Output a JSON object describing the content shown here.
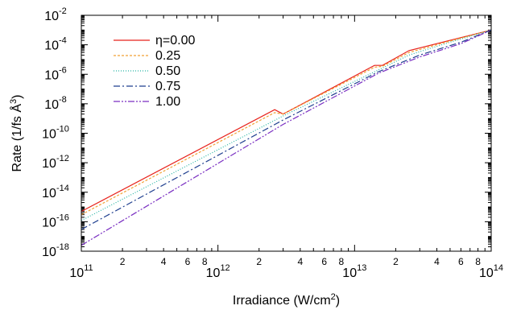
{
  "chart_data": {
    "type": "line",
    "xlabel": "Irradiance (W/cm",
    "xlabel_sup": "2",
    "xlabel_end": ")",
    "ylabel": "Rate (1/fs Å",
    "ylabel_sup": "3",
    "ylabel_end": ")",
    "xscale": "log",
    "yscale": "log",
    "xlim": [
      100000000000.0,
      100000000000000.0
    ],
    "ylim": [
      1e-18,
      0.01
    ],
    "x_major_ticks": [
      {
        "value": 100000000000.0,
        "base": "10",
        "exp": "11"
      },
      {
        "value": 1000000000000.0,
        "base": "10",
        "exp": "12"
      },
      {
        "value": 10000000000000.0,
        "base": "10",
        "exp": "13"
      },
      {
        "value": 100000000000000.0,
        "base": "10",
        "exp": "14"
      }
    ],
    "x_minor_labels": [
      "2",
      "4",
      "6",
      "8"
    ],
    "y_major_ticks": [
      {
        "value": 1e-18,
        "base": "10",
        "exp": "-18"
      },
      {
        "value": 1e-16,
        "base": "10",
        "exp": "-16"
      },
      {
        "value": 1e-14,
        "base": "10",
        "exp": "-14"
      },
      {
        "value": 1e-12,
        "base": "10",
        "exp": "-12"
      },
      {
        "value": 1e-10,
        "base": "10",
        "exp": "-10"
      },
      {
        "value": 1e-08,
        "base": "10",
        "exp": "-8"
      },
      {
        "value": 1e-06,
        "base": "10",
        "exp": "-6"
      },
      {
        "value": 0.0001,
        "base": "10",
        "exp": "-4"
      },
      {
        "value": 0.01,
        "base": "10",
        "exp": "-2"
      }
    ],
    "legend_position": "top-left",
    "series": [
      {
        "name": "η=0.00",
        "color": "#e8231c",
        "dash": "solid",
        "x": [
          100000000000.0,
          2600000000000.0,
          3000000000000.0,
          14000000000000.0,
          16000000000000.0,
          25000000000000.0,
          50000000000000.0,
          100000000000000.0
        ],
        "y": [
          5e-16,
          4e-09,
          2e-09,
          4e-06,
          4e-06,
          4e-05,
          0.0002,
          0.001
        ]
      },
      {
        "name": "0.25",
        "color": "#f2a134",
        "dash": "3,2",
        "x": [
          100000000000.0,
          2600000000000.0,
          3000000000000.0,
          14000000000000.0,
          16000000000000.0,
          25000000000000.0,
          50000000000000.0,
          100000000000000.0
        ],
        "y": [
          3e-16,
          2.5e-09,
          2e-09,
          3e-06,
          3.5e-06,
          3e-05,
          0.00018,
          0.001
        ]
      },
      {
        "name": "0.50",
        "color": "#26b5a3",
        "dash": "1,2",
        "x": [
          100000000000.0,
          3000000000000.0,
          15000000000000.0,
          25000000000000.0,
          50000000000000.0,
          100000000000000.0
        ],
        "y": [
          1.2e-16,
          1.5e-09,
          2e-06,
          2e-05,
          0.00015,
          0.001
        ]
      },
      {
        "name": "0.75",
        "color": "#1f3f8f",
        "dash": "8,3,2,3",
        "x": [
          100000000000.0,
          3000000000000.0,
          15000000000000.0,
          30000000000000.0,
          60000000000000.0,
          100000000000000.0
        ],
        "y": [
          3e-17,
          8e-10,
          1.5e-06,
          2e-05,
          0.00015,
          0.001
        ]
      },
      {
        "name": "1.00",
        "color": "#7a2fc2",
        "dash": "8,2,2,2,2,2",
        "x": [
          100000000000.0,
          3000000000000.0,
          15000000000000.0,
          30000000000000.0,
          60000000000000.0,
          100000000000000.0
        ],
        "y": [
          2.5e-18,
          4e-10,
          1.2e-06,
          1.5e-05,
          0.00012,
          0.001
        ]
      }
    ]
  }
}
